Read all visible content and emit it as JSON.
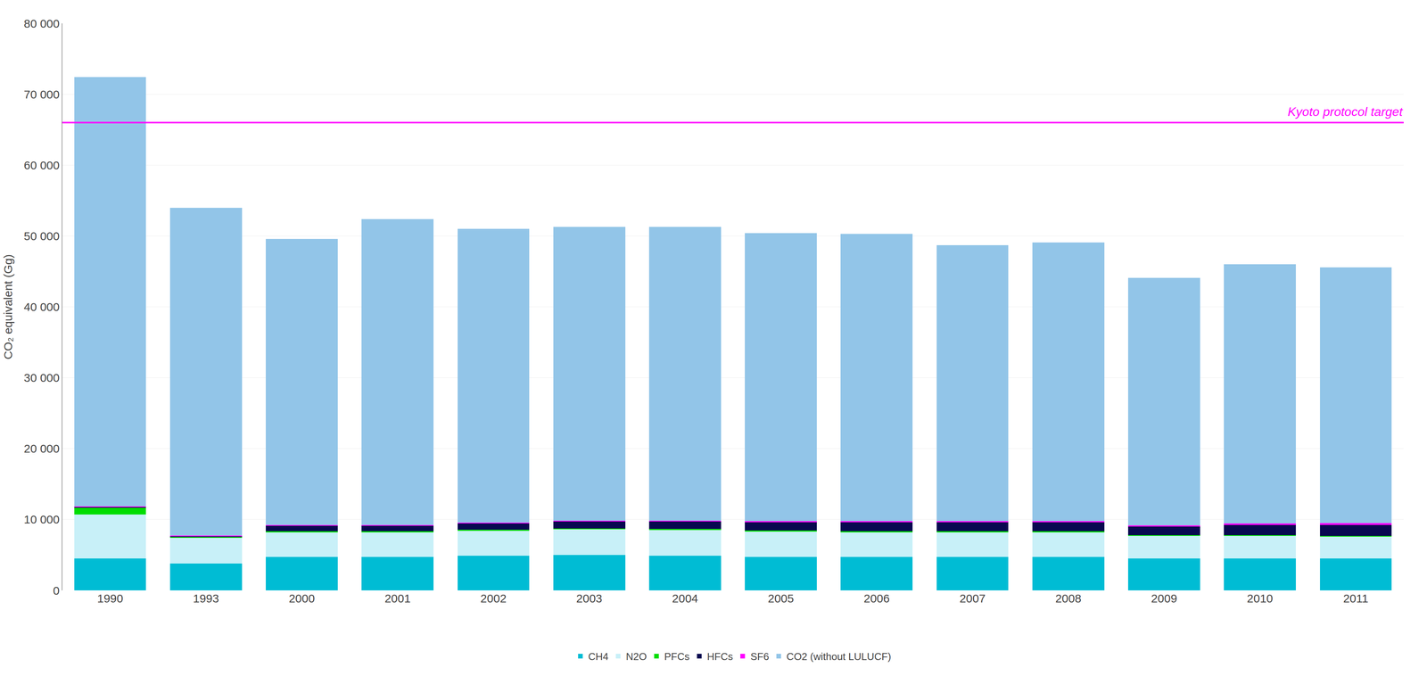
{
  "chart_data": {
    "type": "bar",
    "stacked": true,
    "ylabel": "CO₂ equivalent (Gg)",
    "categories": [
      "1990",
      "1993",
      "2000",
      "2001",
      "2002",
      "2003",
      "2004",
      "2005",
      "2006",
      "2007",
      "2008",
      "2009",
      "2010",
      "2011"
    ],
    "series": [
      {
        "name": "CH4",
        "color": "#00BCD4",
        "values": [
          4500,
          3800,
          4700,
          4700,
          4900,
          5000,
          4900,
          4700,
          4700,
          4700,
          4700,
          4500,
          4500,
          4500
        ]
      },
      {
        "name": "N2O",
        "color": "#C8F0F8",
        "values": [
          6200,
          3600,
          3500,
          3500,
          3500,
          3600,
          3600,
          3600,
          3500,
          3500,
          3500,
          3200,
          3200,
          3100
        ]
      },
      {
        "name": "PFCs",
        "color": "#00DD00",
        "values": [
          950,
          150,
          150,
          150,
          150,
          150,
          150,
          150,
          150,
          150,
          150,
          100,
          100,
          100
        ]
      },
      {
        "name": "HFCs",
        "color": "#080850",
        "values": [
          100,
          100,
          800,
          800,
          900,
          1000,
          1100,
          1200,
          1300,
          1300,
          1300,
          1200,
          1400,
          1500
        ]
      },
      {
        "name": "SF6",
        "color": "#FF00FF",
        "values": [
          100,
          100,
          100,
          100,
          100,
          100,
          100,
          100,
          100,
          100,
          100,
          150,
          250,
          280
        ]
      },
      {
        "name": "CO2 (without LULUCF)",
        "color": "#92C5E8",
        "values": [
          60550,
          46250,
          40350,
          43150,
          41450,
          41450,
          41450,
          40650,
          40550,
          38950,
          39350,
          34950,
          36550,
          36120
        ]
      }
    ],
    "annotations": [
      {
        "text": "Kyoto protocol target",
        "y": 66000,
        "color": "#FF00FF"
      }
    ],
    "ylim": [
      0,
      80000
    ],
    "yticks": [
      0,
      {
        "value": 10000,
        "label": "10 000"
      },
      {
        "value": 20000,
        "label": "20 000"
      },
      {
        "value": 30000,
        "label": "30 000"
      },
      {
        "value": 40000,
        "label": "40 000"
      },
      {
        "value": 50000,
        "label": "50 000"
      },
      {
        "value": 60000,
        "label": "60 000"
      },
      {
        "value": 70000,
        "label": "70 000"
      },
      {
        "value": 80000,
        "label": "80 000"
      }
    ],
    "grid": true,
    "legend": "bottom"
  }
}
